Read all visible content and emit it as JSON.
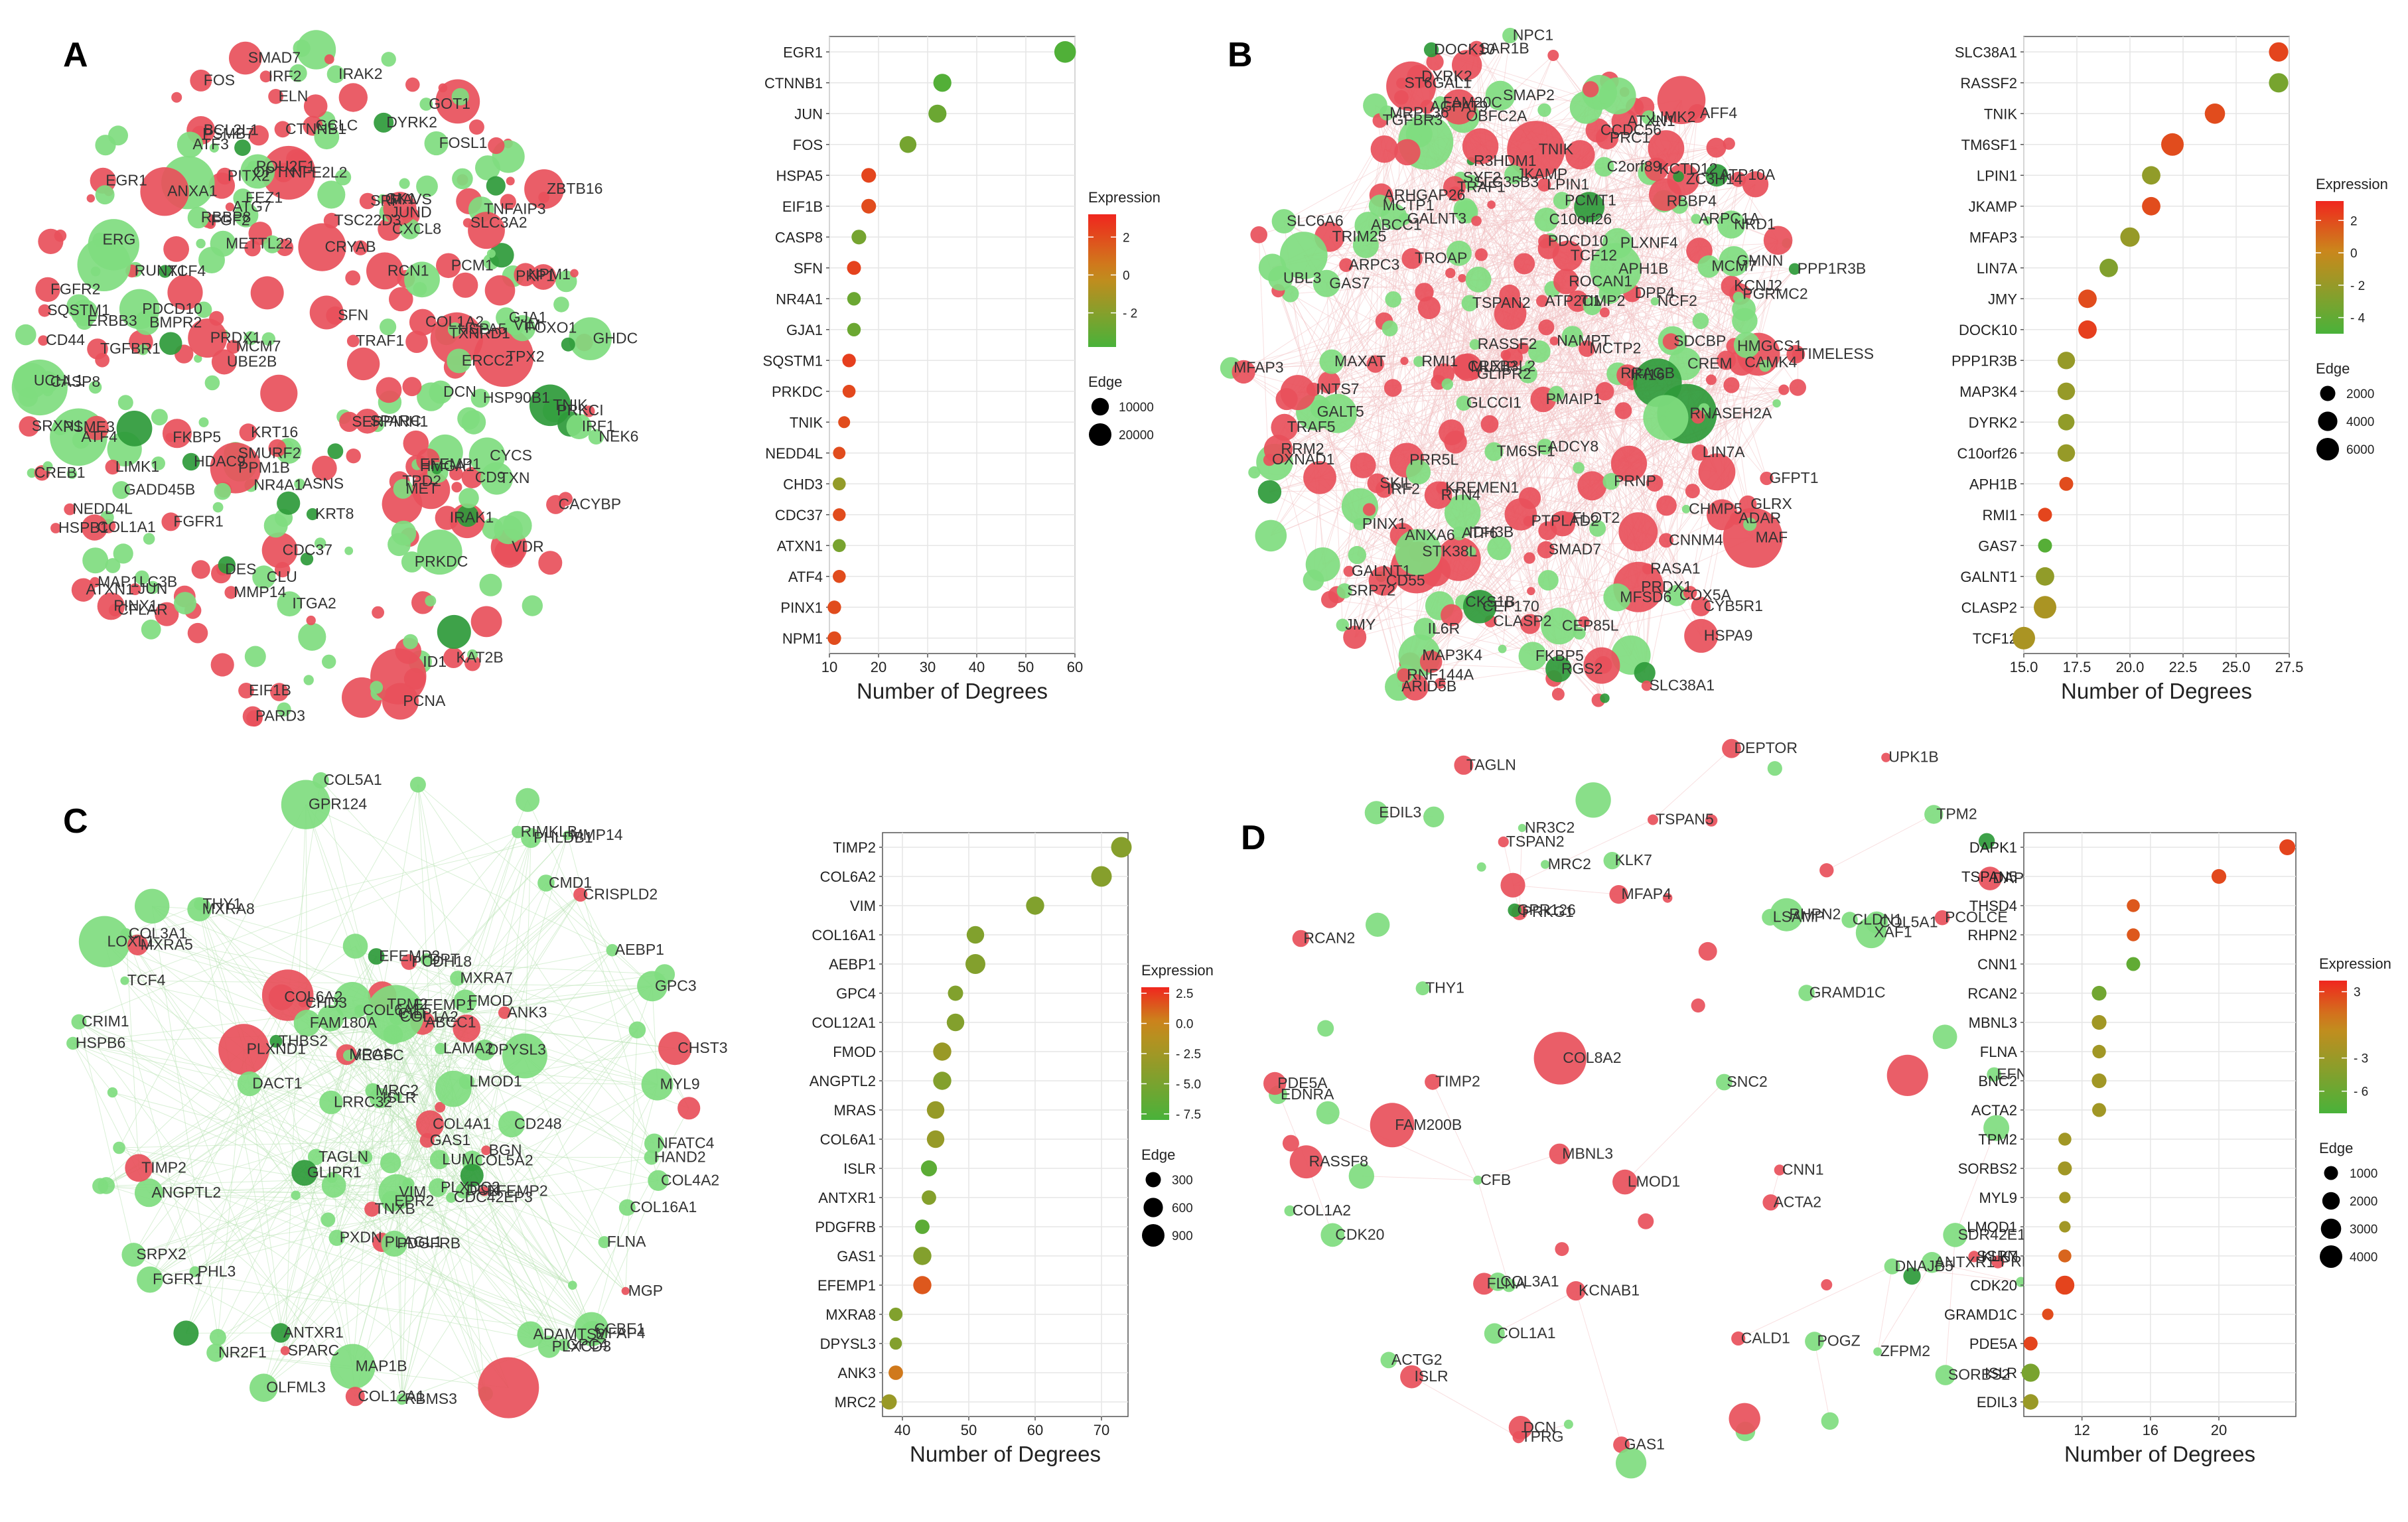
{
  "colors": {
    "up": "#e8505b",
    "up_light": "#f08f93",
    "down": "#7fdc7f",
    "down_dark": "#2e9a3a",
    "edge": "#cfe9cf",
    "grid": "#e6e6e6"
  },
  "panels": [
    {
      "letter": "A",
      "network_labels": [
        "EGR1",
        "CREB1",
        "FOSL1",
        "KRT16",
        "GCLC",
        "CXCL8",
        "ID1",
        "TCF4",
        "VDR",
        "DYRK2",
        "JUN",
        "SMAD7",
        "NPM1",
        "ATF4",
        "NR4A1",
        "FGFR1",
        "FGF2",
        "HDAC9",
        "COL1A2",
        "JUND",
        "SRF",
        "FKBP5",
        "FGFR2",
        "MCM7",
        "CD44",
        "LIMK1",
        "BMPR2",
        "ITGA2",
        "CD9",
        "GADD45B",
        "RUNX1",
        "FOS",
        "NFE2L2",
        "CTNNB1",
        "ERBB3",
        "POU2F1",
        "TSC22D3",
        "PINX1",
        "ATF3",
        "KAT2B",
        "SLC3A2",
        "COL1A1",
        "NEDD4L",
        "MET",
        "TXN",
        "MMP14",
        "ERG",
        "TGFBR1",
        "ASNS",
        "VIM",
        "HMGA1",
        "CRYAB",
        "ZBTB16",
        "PCM1",
        "PSME3",
        "GHDC",
        "GK1",
        "NEK6",
        "PKP1",
        "PRKDC",
        "TPX2",
        "IRF2",
        "CACYBP",
        "UCHL1",
        "PARD3",
        "SMURF2",
        "FOXO1",
        "ATXN1",
        "TXNRD1",
        "SFN",
        "HSP90B1",
        "PITX2",
        "PPM1B",
        "EIF1B",
        "PRDX1",
        "PCNA",
        "SERPINH1",
        "IRF1",
        "HSPA5",
        "BCL2L1",
        "CLU",
        "ERCC2",
        "METTL22",
        "CYCS",
        "ATG7",
        "PSMB7",
        "UBE2B",
        "ANXA1",
        "RBBP8",
        "TNIK",
        "HSPB1",
        "SPARC",
        "GJA1",
        "MAP1LC3B",
        "DES",
        "ELN",
        "DCN",
        "TPD2",
        "EFEMP1",
        "CASP8",
        "GOT1",
        "SQSTM1",
        "PRKCI",
        "RCN1",
        "KRT8",
        "SRXN1",
        "CDC37",
        "FEZ1",
        "MAVS",
        "PDCD10",
        "CFLAR",
        "TRAF1",
        "IRAK1",
        "OPTN",
        "TNFAIP3",
        "IRAK2"
      ],
      "chart_data": {
        "type": "scatter",
        "orientation": "horizontal",
        "categories": [
          "EGR1",
          "CTNNB1",
          "JUN",
          "FOS",
          "HSPA5",
          "EIF1B",
          "CASP8",
          "SFN",
          "NR4A1",
          "GJA1",
          "SQSTM1",
          "PRKDC",
          "TNIK",
          "NEDD4L",
          "CHD3",
          "CDC37",
          "ATXN1",
          "ATF4",
          "PINX1",
          "NPM1"
        ],
        "degrees": [
          58,
          33,
          32,
          26,
          18,
          18,
          16,
          15,
          15,
          15,
          14,
          14,
          13,
          12,
          12,
          12,
          12,
          12,
          11,
          11
        ],
        "expression": [
          -3.6,
          -3.5,
          -2.8,
          -2.5,
          2.2,
          2.0,
          -2.5,
          2.3,
          -2.8,
          -2.8,
          2.4,
          2.1,
          2.0,
          2.0,
          -1.6,
          2.0,
          -2.4,
          2.0,
          2.0,
          2.0
        ],
        "edge": [
          18000,
          11000,
          11000,
          9000,
          6000,
          6000,
          6000,
          5000,
          4500,
          4500,
          4500,
          4000,
          3000,
          3500,
          4000,
          3800,
          4000,
          4000,
          4500,
          4500
        ],
        "xlim": [
          10,
          60
        ],
        "xticks": [
          10,
          20,
          30,
          40,
          50,
          60
        ],
        "xlabel": "Number of Degrees",
        "color_legend": {
          "title": "Expression",
          "range": [
            -3.8,
            3.2
          ],
          "ticks": [
            2,
            0,
            -2
          ],
          "tick_labels": [
            "2",
            "0",
            "- 2"
          ]
        },
        "size_legend": {
          "title": "Edge",
          "values": [
            10000,
            20000
          ],
          "labels": [
            "10000",
            "20000"
          ],
          "size_range": [
            0,
            20000
          ]
        }
      }
    },
    {
      "letter": "B",
      "network_labels": [
        "DYRK2",
        "RBBP4",
        "AGPAT9",
        "MAF",
        "ARPC1A",
        "TNIK",
        "RNASEH2A",
        "COX5A",
        "ABCC1",
        "RMI1",
        "FLOT2",
        "ARPC3",
        "TRAF5",
        "NRD1",
        "JKAMP",
        "CREM",
        "LIN7A",
        "RRAGB",
        "TIMELESS",
        "MAP3K4",
        "RASA1",
        "MFSD6",
        "GFPT1",
        "TRIM25",
        "ATP10A",
        "GMNN",
        "PLXNF4",
        "TGFBR3",
        "RRM2",
        "C10orf26",
        "MRPL36",
        "TM6SF1",
        "IFI16",
        "TROAP",
        "RNF144A",
        "CHMP5",
        "GLRX",
        "C2orf89",
        "PMAIP1",
        "ST6GAL1",
        "KREMEN1",
        "RASSF2",
        "MCM7",
        "PRR5L",
        "KCTD12",
        "CREB3L2",
        "PGRMC2",
        "IDH3B",
        "GALNT1",
        "DPP4",
        "LPIN1",
        "CCDC56",
        "PRC1",
        "HSPA9",
        "OBFC2A",
        "PINX1",
        "MCTP2",
        "MCTP1",
        "R3HDM1",
        "IL6R",
        "CLASP2",
        "MLXIP",
        "RTN4",
        "SLC38A1",
        "ATF6",
        "INTS7",
        "NPC1",
        "SMAP2",
        "GLIPR2",
        "ARID5B",
        "SDCBP",
        "RGS2",
        "AFF4",
        "MAXAT",
        "ATP2C1",
        "CEP85L",
        "NCF2",
        "PCMT1",
        "GALNT3",
        "STK38L",
        "CYB5R1",
        "PPP1R3B",
        "CAMK4",
        "CNNM4",
        "ADCY8",
        "JMY",
        "PRDX1",
        "KCNJ2",
        "PDCD10",
        "ANXA6",
        "NAMPT",
        "OXNAD1",
        "ROCAN1",
        "GLCCI1",
        "PTPLAD2",
        "TIMP2",
        "APH1B",
        "ARHGAP26",
        "SLC35B3",
        "LIMK2",
        "ATXN1",
        "FKBP5",
        "CKS1B",
        "GALT5",
        "ZC3H14",
        "DOCK10",
        "MFAP3",
        "FAM20C",
        "ADAR",
        "SYF2",
        "TSPAN2",
        "HMGCS1",
        "SLC6A6",
        "UBL3",
        "SMAD7",
        "IRF2",
        "TRAF1",
        "GAS7",
        "SRP72",
        "CD55",
        "SAR1B",
        "SKIL",
        "PRNP",
        "TCF12",
        "CEP170"
      ],
      "chart_data": {
        "type": "scatter",
        "orientation": "horizontal",
        "categories": [
          "SLC38A1",
          "RASSF2",
          "TNIK",
          "TM6SF1",
          "LPIN1",
          "JKAMP",
          "MFAP3",
          "LIN7A",
          "JMY",
          "DOCK10",
          "PPP1R3B",
          "MAP3K4",
          "DYRK2",
          "C10orf26",
          "APH1B",
          "RMI1",
          "GAS7",
          "GALNT1",
          "CLASP2",
          "TCF12"
        ],
        "degrees": [
          27,
          27,
          24,
          22,
          21,
          21,
          20,
          19,
          18,
          18,
          17,
          17,
          17,
          17,
          17,
          16,
          16,
          16,
          16,
          15
        ],
        "expression": [
          2.2,
          -3.2,
          2.0,
          2.0,
          -2.2,
          2.0,
          -2.0,
          -2.8,
          2.0,
          2.4,
          -2.0,
          -2.0,
          -2.2,
          -2.0,
          2.0,
          2.2,
          -4.5,
          -2.2,
          -1.2,
          -1.2
        ],
        "edge": [
          4000,
          4000,
          4500,
          6000,
          3500,
          3500,
          4000,
          3500,
          3500,
          3500,
          3000,
          3000,
          2500,
          3000,
          1500,
          1500,
          1500,
          3500,
          6000,
          6000
        ],
        "xlim": [
          15,
          27.5
        ],
        "xticks": [
          15,
          17.5,
          20,
          22.5,
          25,
          27.5
        ],
        "xtick_labels": [
          "15.0",
          "17.5",
          "20.0",
          "22.5",
          "25.0",
          "27.5"
        ],
        "xlabel": "Number of Degrees",
        "color_legend": {
          "title": "Expression",
          "range": [
            -5,
            3.2
          ],
          "ticks": [
            2,
            0,
            -2,
            -4
          ],
          "tick_labels": [
            "2",
            "0",
            "- 2",
            "- 4"
          ]
        },
        "size_legend": {
          "title": "Edge",
          "values": [
            2000,
            4000,
            6000
          ],
          "labels": [
            "2000",
            "4000",
            "6000"
          ],
          "size_range": [
            0,
            6000
          ]
        }
      }
    },
    {
      "letter": "C",
      "network_labels": [
        "COL4A2",
        "COL4A1",
        "CHST3",
        "ABCC1",
        "EFEMP1",
        "COL1A2",
        "MMP14",
        "ADAMTS2",
        "MAP1B",
        "PHL3",
        "CRISPLD2",
        "FMOD",
        "LRRC32",
        "LAMA2",
        "COL5A1",
        "GLIPR1",
        "MXRA7",
        "THBS2",
        "GAS1",
        "SPARC",
        "FLNA",
        "TAGLN",
        "PHLDB1",
        "EPR2",
        "CDC42EP3",
        "FGFR1",
        "CMD1",
        "COL3A1",
        "TNXB",
        "VIM",
        "SRPX2",
        "CRIM1",
        "CILP",
        "PLXDC2",
        "PLAGL1",
        "AEBP1",
        "HSPB6",
        "DPYSL3",
        "MRAS",
        "EFEMP2",
        "RIMKLB",
        "CHD3",
        "THY1",
        "NFATC4",
        "LMOD1",
        "TPM2",
        "GPR124",
        "GPC4",
        "LOXL1",
        "TIMP2",
        "COL12A1",
        "PLXND1",
        "PLXCD3",
        "COL5A2",
        "COL6A2",
        "GPC3",
        "VEGFC",
        "NR2F1",
        "PDGFRB",
        "MYL9",
        "MRC2",
        "TCF4",
        "LUM",
        "PXDN",
        "MGP",
        "MFAP4",
        "ANTXR1",
        "COL16A1",
        "COL6A1",
        "MXRA8",
        "DPT",
        "DCN",
        "ANGPTL2",
        "BGN",
        "DACT1",
        "ISLR",
        "CD248",
        "EFEMP2",
        "ANK3",
        "FAM180A",
        "PCDH18",
        "CCBE1",
        "RBMS3",
        "MXRA5",
        "OLFML3",
        "HAND2"
      ],
      "chart_data": {
        "type": "scatter",
        "orientation": "horizontal",
        "categories": [
          "TIMP2",
          "COL6A2",
          "VIM",
          "COL16A1",
          "AEBP1",
          "GPC4",
          "COL12A1",
          "FMOD",
          "ANGPTL2",
          "MRAS",
          "COL6A1",
          "ISLR",
          "ANTXR1",
          "PDGFRB",
          "GAS1",
          "EFEMP1",
          "MXRA8",
          "DPYSL3",
          "ANK3",
          "MRC2"
        ],
        "degrees": [
          73,
          70,
          60,
          51,
          51,
          48,
          48,
          46,
          46,
          45,
          45,
          44,
          44,
          43,
          43,
          43,
          39,
          39,
          39,
          38
        ],
        "expression": [
          -4.2,
          -4.2,
          -4.5,
          -4.5,
          -4.4,
          -4.5,
          -4.4,
          -3.0,
          -4.4,
          -3.2,
          -3.2,
          -6.8,
          -4.3,
          -6.8,
          -4.4,
          1.5,
          -4.5,
          -4.4,
          0.5,
          -3.0
        ],
        "edge": [
          700,
          700,
          500,
          450,
          650,
          300,
          450,
          500,
          500,
          450,
          450,
          350,
          250,
          250,
          500,
          500,
          200,
          150,
          250,
          300
        ],
        "xlim": [
          37,
          74
        ],
        "xticks": [
          40,
          50,
          60,
          70
        ],
        "xlabel": "Number of Degrees",
        "color_legend": {
          "title": "Expression",
          "range": [
            -8,
            3
          ],
          "ticks": [
            2.5,
            0,
            -2.5,
            -5,
            -7.5
          ],
          "tick_labels": [
            "2.5",
            "0.0",
            "- 2.5",
            "- 5.0",
            "- 7.5"
          ]
        },
        "size_legend": {
          "title": "Edge",
          "values": [
            300,
            600,
            900
          ],
          "labels": [
            "300",
            "600",
            "900"
          ],
          "size_range": [
            0,
            900
          ]
        }
      }
    },
    {
      "letter": "D",
      "network_labels": [
        "COL1A1",
        "COL1A2",
        "COL5A1",
        "THY1",
        "COL3A1",
        "PCOLCE",
        "MRC2",
        "SSPN",
        "XAF1",
        "ISLR",
        "DCN",
        "MFAP4",
        "POGZ",
        "TIMP2",
        "FAM200B",
        "ANTXR1",
        "NR3C2",
        "EDNRA",
        "PRKG1",
        "SDR42E1",
        "CDK20",
        "PDE5A",
        "EFNA5",
        "CALD1",
        "KLK7",
        "TPRG",
        "COL8A2",
        "TSPAN2",
        "MBNL3",
        "DAPK1",
        "SNC2",
        "GAS1",
        "DEPTOR",
        "RCAN2",
        "EDIL3",
        "KCNAB1",
        "ACTA2",
        "TSPAN5",
        "GRAMD1C",
        "PALLD",
        "ZFPM2",
        "RHPN2",
        "LSAMP",
        "SORBS2",
        "LMOD1",
        "GPR126",
        "PRKCI",
        "MYL9",
        "THSD4",
        "COL8A1",
        "DNAJB5",
        "UPK1B",
        "RASSF8",
        "FLNA",
        "TAGLN",
        "CNN1",
        "CLDN1",
        "CFB",
        "TPM2",
        "ACTG2"
      ],
      "chart_data": {
        "type": "scatter",
        "orientation": "horizontal",
        "categories": [
          "DAPK1",
          "TSPAN5",
          "THSD4",
          "RHPN2",
          "CNN1",
          "RCAN2",
          "MBNL3",
          "FLNA",
          "BNC2",
          "ACTA2",
          "TPM2",
          "SORBS2",
          "MYL9",
          "LMOD1",
          "KLK7",
          "CDK20",
          "GRAMD1C",
          "PDE5A",
          "ISLR",
          "EDIL3"
        ],
        "degrees": [
          24,
          20,
          15,
          15,
          15,
          13,
          13,
          13,
          13,
          13,
          11,
          11,
          11,
          11,
          11,
          11,
          10,
          9,
          9,
          9
        ],
        "expression": [
          2.8,
          2.6,
          2.0,
          2.0,
          -6.5,
          -5.5,
          -2.5,
          -2.5,
          -2.5,
          -2.5,
          -2.5,
          -2.5,
          -2.5,
          -2.5,
          1.5,
          2.8,
          2.5,
          2.8,
          -5.0,
          -3.0
        ],
        "edge": [
          1500,
          1200,
          800,
          800,
          1000,
          1200,
          1200,
          900,
          1200,
          1000,
          800,
          1000,
          500,
          500,
          800,
          2500,
          500,
          1000,
          2200,
          1400
        ],
        "xlim": [
          8.6,
          24.5
        ],
        "xticks": [
          12,
          16,
          20
        ],
        "xlabel": "Number of Degrees",
        "color_legend": {
          "title": "Expression",
          "range": [
            -8,
            4
          ],
          "ticks": [
            3,
            -3,
            -6
          ],
          "tick_labels": [
            "3",
            "- 3",
            "- 6"
          ]
        },
        "size_legend": {
          "title": "Edge",
          "values": [
            1000,
            2000,
            3000,
            4000
          ],
          "labels": [
            "1000",
            "2000",
            "3000",
            "4000"
          ],
          "size_range": [
            0,
            4000
          ]
        }
      }
    }
  ]
}
